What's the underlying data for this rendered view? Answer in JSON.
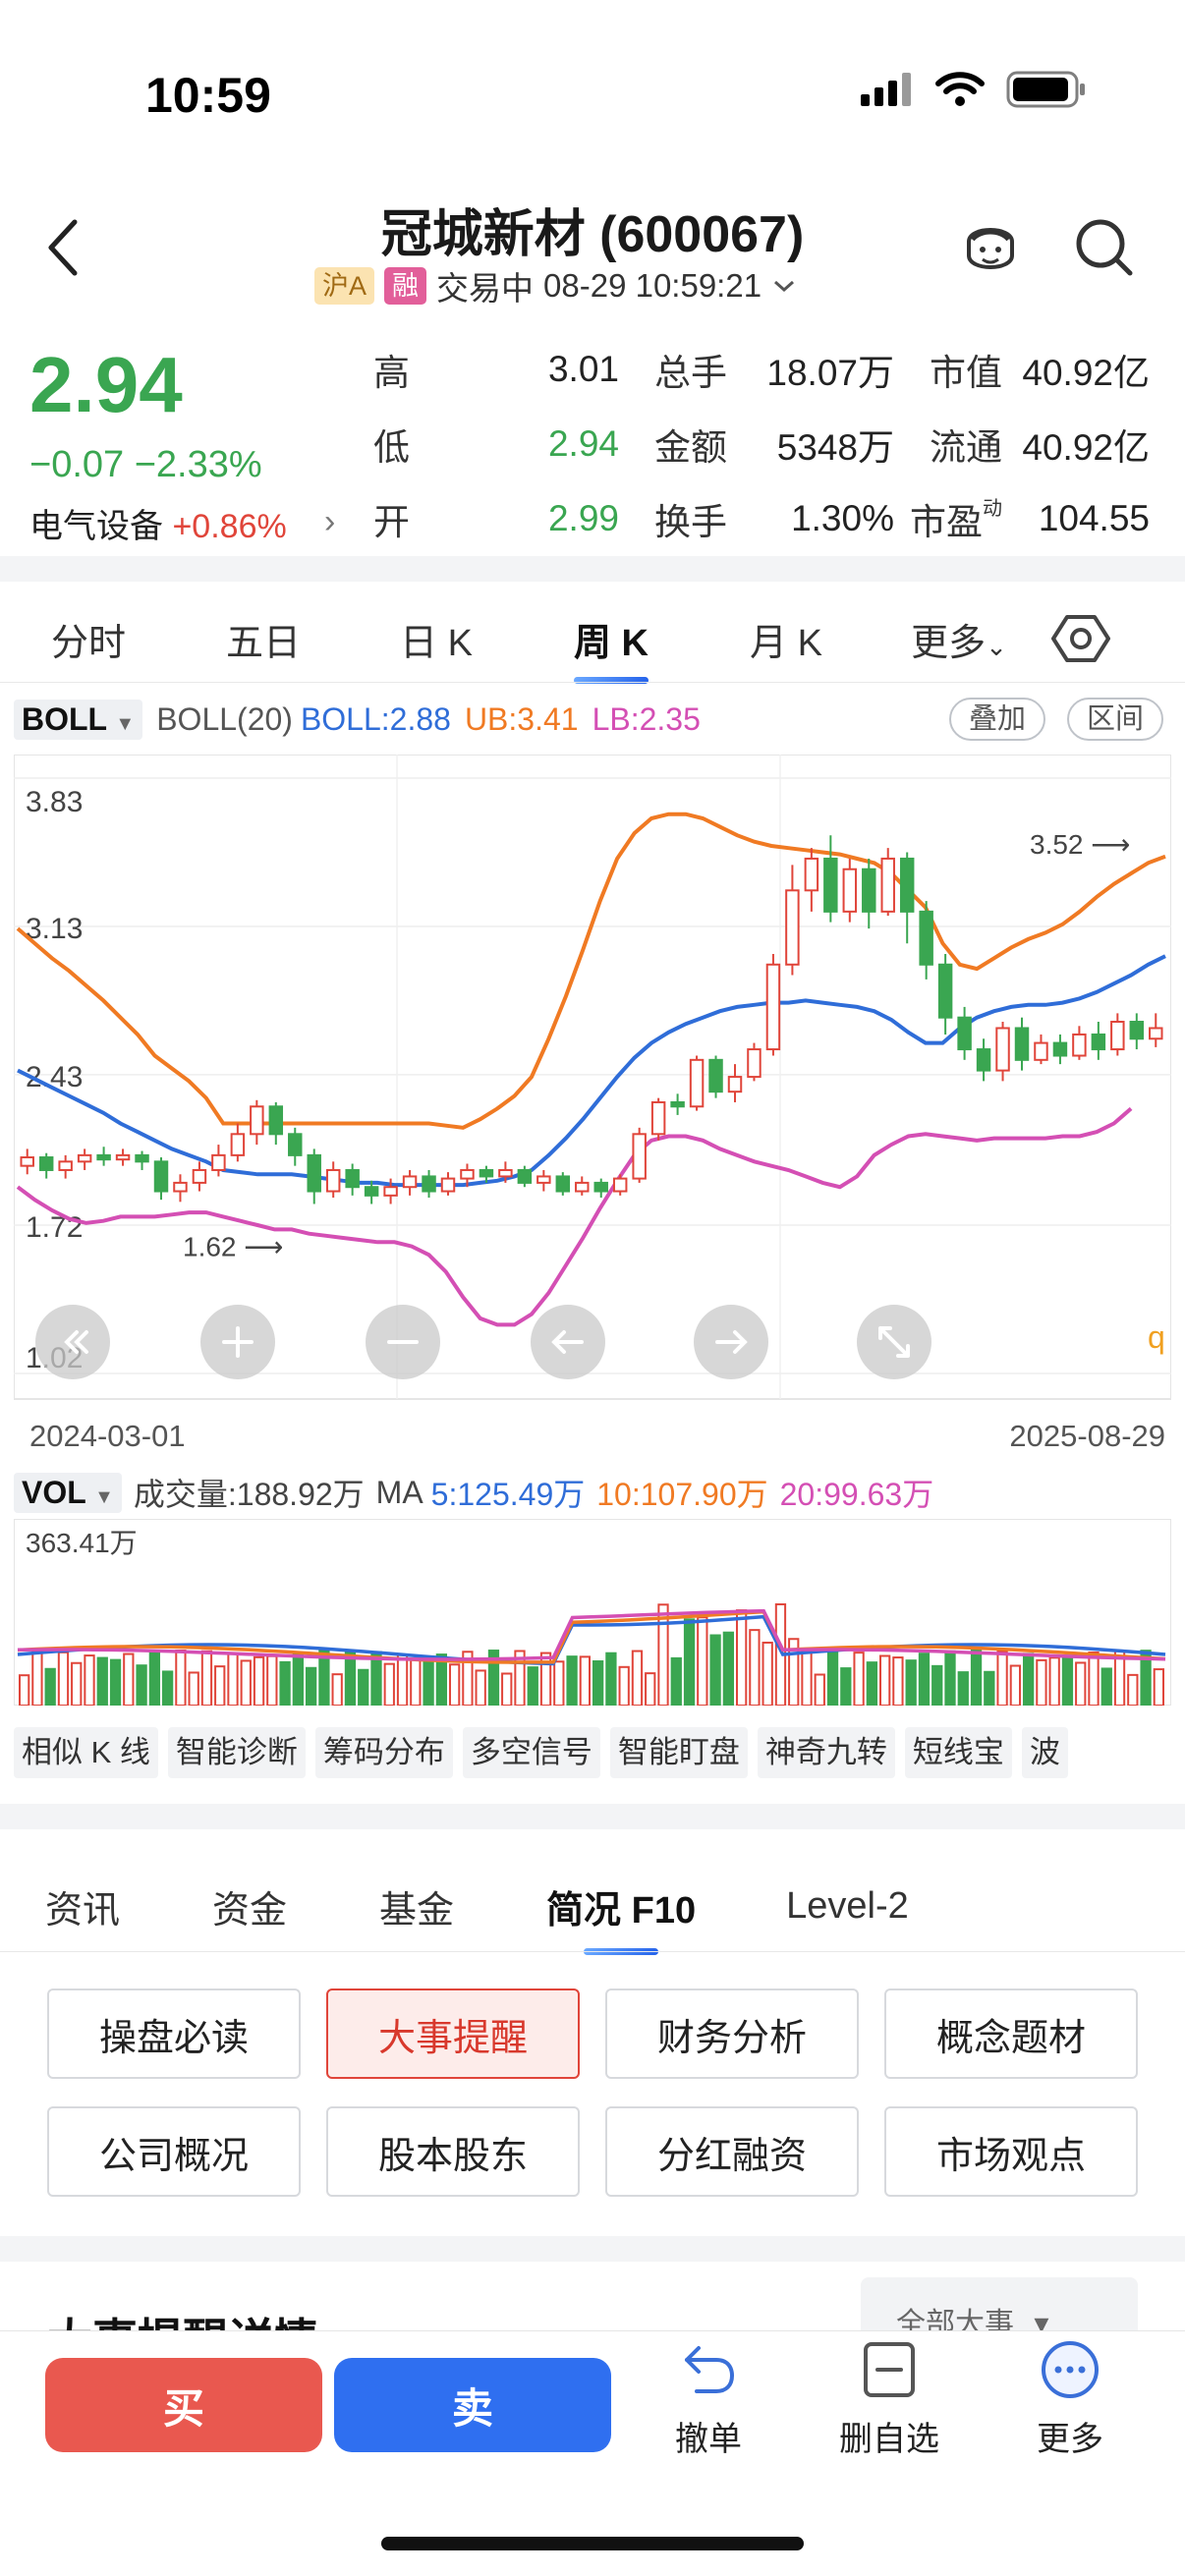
{
  "status": {
    "time": "10:59"
  },
  "header": {
    "title": "冠城新材 (600067)",
    "tag_market": "沪A",
    "tag_margin": "融",
    "trade_status": "交易中",
    "datetime": "08-29 10:59:21"
  },
  "quote": {
    "price": "2.94",
    "change": "−0.07 −2.33%",
    "sector_name": "电气设备",
    "sector_change": "+0.86%",
    "rows": [
      {
        "l1": "高",
        "v1": "3.01",
        "l2": "总手",
        "v2": "18.07万",
        "l3": "市值",
        "v3": "40.92亿"
      },
      {
        "l1": "低",
        "v1": "2.94",
        "l2": "金额",
        "v2": "5348万",
        "l3": "流通",
        "v3": "40.92亿"
      },
      {
        "l1": "开",
        "v1": "2.99",
        "l2": "换手",
        "v2": "1.30%",
        "l3": "市盈",
        "l3_sup": "动",
        "v3": "104.55"
      }
    ]
  },
  "period_tabs": [
    "分时",
    "五日",
    "日 K",
    "周 K",
    "月 K",
    "更多"
  ],
  "indicator": {
    "selected": "BOLL",
    "name": "BOLL(20)",
    "mid": "BOLL:2.88",
    "ub": "UB:3.41",
    "lb": "LB:2.35",
    "overlay_btn": "叠加",
    "range_btn": "区间"
  },
  "chart_data": {
    "type": "candlestick",
    "y_ticks": [
      "3.83",
      "3.13",
      "2.43",
      "1.72",
      "1.02"
    ],
    "ylim": [
      1.02,
      3.83
    ],
    "high_annotation": "3.52",
    "low_annotation": "1.62",
    "x_start": "2024-03-01",
    "x_end": "2025-08-29",
    "right_edge_label": "q",
    "ub": [
      3.12,
      3.05,
      2.98,
      2.92,
      2.85,
      2.78,
      2.7,
      2.62,
      2.52,
      2.46,
      2.4,
      2.32,
      2.2,
      2.2,
      2.2,
      2.2,
      2.2,
      2.2,
      2.2,
      2.2,
      2.2,
      2.2,
      2.2,
      2.2,
      2.2,
      2.19,
      2.18,
      2.22,
      2.27,
      2.33,
      2.42,
      2.6,
      2.8,
      3.02,
      3.25,
      3.45,
      3.57,
      3.64,
      3.66,
      3.66,
      3.64,
      3.6,
      3.56,
      3.53,
      3.51,
      3.5,
      3.49,
      3.48,
      3.47,
      3.45,
      3.43,
      3.38,
      3.3,
      3.22,
      3.05,
      2.95,
      2.93,
      2.98,
      3.03,
      3.07,
      3.1,
      3.14,
      3.2,
      3.27,
      3.33,
      3.38,
      3.43,
      3.46
    ],
    "mid": [
      2.45,
      2.41,
      2.37,
      2.33,
      2.29,
      2.25,
      2.2,
      2.16,
      2.12,
      2.08,
      2.05,
      2.02,
      1.98,
      1.97,
      1.96,
      1.96,
      1.96,
      1.95,
      1.94,
      1.93,
      1.92,
      1.92,
      1.91,
      1.91,
      1.91,
      1.91,
      1.91,
      1.92,
      1.93,
      1.95,
      1.98,
      2.05,
      2.13,
      2.22,
      2.32,
      2.42,
      2.51,
      2.58,
      2.63,
      2.67,
      2.7,
      2.73,
      2.75,
      2.76,
      2.77,
      2.77,
      2.78,
      2.77,
      2.76,
      2.75,
      2.73,
      2.69,
      2.63,
      2.58,
      2.58,
      2.65,
      2.7,
      2.73,
      2.75,
      2.76,
      2.76,
      2.77,
      2.79,
      2.82,
      2.86,
      2.9,
      2.95,
      2.99
    ],
    "lb": [
      1.9,
      1.84,
      1.79,
      1.75,
      1.73,
      1.74,
      1.76,
      1.76,
      1.76,
      1.77,
      1.78,
      1.78,
      1.76,
      1.74,
      1.72,
      1.7,
      1.7,
      1.68,
      1.67,
      1.66,
      1.65,
      1.64,
      1.64,
      1.62,
      1.58,
      1.5,
      1.38,
      1.28,
      1.25,
      1.25,
      1.3,
      1.4,
      1.53,
      1.66,
      1.8,
      1.93,
      2.05,
      2.12,
      2.14,
      2.14,
      2.12,
      2.08,
      2.05,
      2.02,
      2.0,
      1.98,
      1.95,
      1.92,
      1.9,
      1.95,
      2.05,
      2.1,
      2.14,
      2.15,
      2.14,
      2.13,
      2.12,
      2.13,
      2.13,
      2.13,
      2.13,
      2.14,
      2.14,
      2.16,
      2.2,
      2.27
    ],
    "candles": [
      [
        2.0,
        2.04,
        1.96,
        2.08
      ],
      [
        2.04,
        1.98,
        1.94,
        2.06
      ],
      [
        1.98,
        2.02,
        1.94,
        2.05
      ],
      [
        2.02,
        2.05,
        1.98,
        2.08
      ],
      [
        2.05,
        2.03,
        2.0,
        2.09
      ],
      [
        2.03,
        2.05,
        2.0,
        2.08
      ],
      [
        2.05,
        2.02,
        1.98,
        2.07
      ],
      [
        2.02,
        1.88,
        1.84,
        2.04
      ],
      [
        1.88,
        1.92,
        1.83,
        1.96
      ],
      [
        1.92,
        1.98,
        1.88,
        2.02
      ],
      [
        1.98,
        2.05,
        1.95,
        2.1
      ],
      [
        2.05,
        2.15,
        2.02,
        2.2
      ],
      [
        2.15,
        2.28,
        2.1,
        2.31
      ],
      [
        2.28,
        2.15,
        2.1,
        2.3
      ],
      [
        2.15,
        2.05,
        2.0,
        2.18
      ],
      [
        2.05,
        1.88,
        1.82,
        2.08
      ],
      [
        1.88,
        1.98,
        1.85,
        2.02
      ],
      [
        1.98,
        1.9,
        1.86,
        2.01
      ],
      [
        1.9,
        1.86,
        1.82,
        1.93
      ],
      [
        1.86,
        1.9,
        1.82,
        1.94
      ],
      [
        1.9,
        1.95,
        1.86,
        1.98
      ],
      [
        1.95,
        1.88,
        1.85,
        1.98
      ],
      [
        1.88,
        1.94,
        1.86,
        1.97
      ],
      [
        1.94,
        1.98,
        1.9,
        2.01
      ],
      [
        1.98,
        1.95,
        1.92,
        2.0
      ],
      [
        1.95,
        1.98,
        1.92,
        2.02
      ],
      [
        1.98,
        1.92,
        1.9,
        2.0
      ],
      [
        1.92,
        1.95,
        1.88,
        1.98
      ],
      [
        1.95,
        1.88,
        1.86,
        1.97
      ],
      [
        1.88,
        1.92,
        1.86,
        1.95
      ],
      [
        1.92,
        1.88,
        1.85,
        1.94
      ],
      [
        1.88,
        1.94,
        1.86,
        1.96
      ],
      [
        1.94,
        2.15,
        1.92,
        2.18
      ],
      [
        2.15,
        2.3,
        2.12,
        2.32
      ],
      [
        2.3,
        2.28,
        2.24,
        2.34
      ],
      [
        2.28,
        2.5,
        2.26,
        2.52
      ],
      [
        2.5,
        2.35,
        2.32,
        2.52
      ],
      [
        2.35,
        2.42,
        2.3,
        2.48
      ],
      [
        2.42,
        2.55,
        2.4,
        2.58
      ],
      [
        2.55,
        2.95,
        2.52,
        3.0
      ],
      [
        2.95,
        3.3,
        2.9,
        3.42
      ],
      [
        3.3,
        3.45,
        3.2,
        3.5
      ],
      [
        3.45,
        3.2,
        3.15,
        3.56
      ],
      [
        3.2,
        3.4,
        3.15,
        3.45
      ],
      [
        3.4,
        3.2,
        3.12,
        3.45
      ],
      [
        3.2,
        3.45,
        3.18,
        3.5
      ],
      [
        3.45,
        3.2,
        3.05,
        3.48
      ],
      [
        3.2,
        2.95,
        2.88,
        3.25
      ],
      [
        2.95,
        2.7,
        2.62,
        3.0
      ],
      [
        2.7,
        2.55,
        2.5,
        2.75
      ],
      [
        2.55,
        2.45,
        2.4,
        2.6
      ],
      [
        2.45,
        2.65,
        2.4,
        2.68
      ],
      [
        2.65,
        2.5,
        2.45,
        2.7
      ],
      [
        2.5,
        2.58,
        2.48,
        2.62
      ],
      [
        2.58,
        2.52,
        2.48,
        2.62
      ],
      [
        2.52,
        2.62,
        2.5,
        2.66
      ],
      [
        2.62,
        2.55,
        2.5,
        2.68
      ],
      [
        2.55,
        2.68,
        2.52,
        2.72
      ],
      [
        2.68,
        2.6,
        2.55,
        2.72
      ],
      [
        2.6,
        2.65,
        2.56,
        2.72
      ]
    ],
    "volume_ticks": [
      "363.41万"
    ]
  },
  "chart_controls": [
    "rewind-icon",
    "zoom-in-icon",
    "zoom-out-icon",
    "arrow-left-icon",
    "arrow-right-icon",
    "fullscreen-icon"
  ],
  "volume": {
    "selected": "VOL",
    "label": "成交量:188.92万",
    "ma_label": "MA",
    "ma5": "5:125.49万",
    "ma10": "10:107.90万",
    "ma20": "20:99.63万",
    "ymax": "363.41万"
  },
  "tools": [
    "相似 K 线",
    "智能诊断",
    "筹码分布",
    "多空信号",
    "智能盯盘",
    "神奇九转",
    "短线宝",
    "波"
  ],
  "info_tabs": [
    "资讯",
    "资金",
    "基金",
    "简况 F10",
    "Level-2"
  ],
  "info_buttons": [
    "操盘必读",
    "大事提醒",
    "财务分析",
    "概念题材",
    "公司概况",
    "股本股东",
    "分红融资",
    "市场观点"
  ],
  "section": {
    "title": "大事提醒详情",
    "dropdown": "全部大事"
  },
  "bottom": {
    "buy": "买",
    "sell": "卖",
    "cancel": "撤单",
    "remove_watch": "删自选",
    "more": "更多"
  },
  "colors": {
    "up": "#e0453a",
    "down": "#3aa651",
    "ub": "#f07a23",
    "mid": "#2f6dd8",
    "lb": "#d44fb4"
  }
}
